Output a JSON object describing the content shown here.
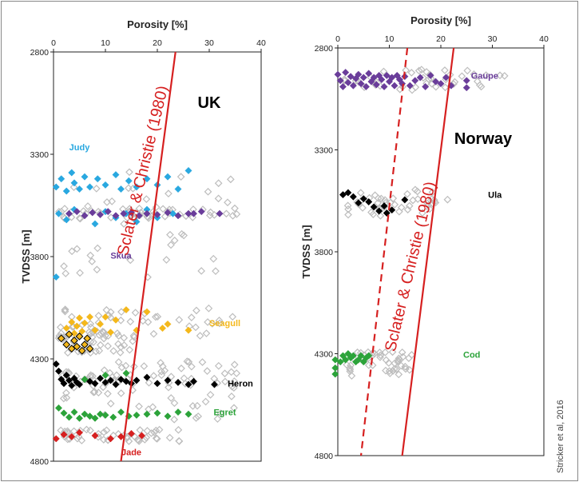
{
  "credit": "Stricker et al, 2016",
  "chart_data": [
    {
      "panel": "left",
      "type": "scatter",
      "region_label": "UK",
      "xlabel": "Porosity [%]",
      "ylabel": "TVDSS [m]",
      "xlim": [
        0,
        40
      ],
      "ylim": [
        2800,
        4800
      ],
      "y_inverted": true,
      "x_axis_position": "top",
      "xticks": [
        "0",
        "10",
        "20",
        "30",
        "40"
      ],
      "yticks": [
        "2800",
        "3300",
        "3800",
        "4300",
        "4800"
      ],
      "trend_lines": [
        {
          "name": "Sclater & Christie (1980)",
          "style": "solid",
          "color": "#d62020",
          "points": [
            [
              23.5,
              2800
            ],
            [
              13,
              4800
            ]
          ]
        }
      ],
      "series": [
        {
          "name": "Judy",
          "color": "#29a8e0",
          "label_at": [
            5,
            3280
          ],
          "values": [
            [
              0.5,
              3460
            ],
            [
              1.5,
              3420
            ],
            [
              2.5,
              3480
            ],
            [
              3.5,
              3390
            ],
            [
              4,
              3440
            ],
            [
              5,
              3470
            ],
            [
              6,
              3410
            ],
            [
              7,
              3460
            ],
            [
              8.5,
              3420
            ],
            [
              10,
              3450
            ],
            [
              12,
              3400
            ],
            [
              13,
              3470
            ],
            [
              14.5,
              3430
            ],
            [
              16,
              3460
            ],
            [
              18,
              3420
            ],
            [
              20,
              3450
            ],
            [
              22,
              3410
            ],
            [
              24,
              3470
            ],
            [
              26,
              3380
            ],
            [
              1,
              3590
            ],
            [
              2.5,
              3620
            ],
            [
              4,
              3570
            ],
            [
              6,
              3600
            ],
            [
              8,
              3640
            ],
            [
              10,
              3580
            ],
            [
              12,
              3610
            ],
            [
              14,
              3590
            ],
            [
              16,
              3630
            ],
            [
              18,
              3570
            ],
            [
              20,
              3610
            ],
            [
              23,
              3590
            ],
            [
              0.5,
              3900
            ]
          ]
        },
        {
          "name": "Skua",
          "color": "#6a3d9a",
          "label_at": [
            13,
            3810
          ],
          "values": [
            [
              3,
              3590
            ],
            [
              4.5,
              3580
            ],
            [
              6,
              3600
            ],
            [
              7.5,
              3585
            ],
            [
              9,
              3595
            ],
            [
              10.5,
              3580
            ],
            [
              12,
              3600
            ],
            [
              13.5,
              3590
            ],
            [
              15,
              3585
            ],
            [
              16.5,
              3600
            ],
            [
              18,
              3590
            ],
            [
              20,
              3595
            ],
            [
              22,
              3585
            ],
            [
              24,
              3600
            ],
            [
              26,
              3590
            ],
            [
              27,
              3590
            ],
            [
              28.5,
              3580
            ],
            [
              32,
              3590
            ]
          ]
        },
        {
          "name": "Seagull",
          "color": "#f4b81c",
          "label_at": [
            33,
            4140
          ],
          "values": [
            [
              2.5,
              4150
            ],
            [
              3.5,
              4120
            ],
            [
              4,
              4175
            ],
            [
              4.5,
              4140
            ],
            [
              5,
              4100
            ],
            [
              5.5,
              4165
            ],
            [
              6,
              4125
            ],
            [
              7,
              4095
            ],
            [
              8,
              4160
            ],
            [
              9,
              4130
            ],
            [
              10,
              4095
            ],
            [
              11,
              4170
            ],
            [
              12,
              4110
            ],
            [
              14,
              4060
            ],
            [
              16,
              4160
            ],
            [
              18,
              4070
            ],
            [
              21,
              4150
            ],
            [
              22,
              4130
            ],
            [
              26,
              4160
            ]
          ]
        },
        {
          "name": "Seagull (outlined)",
          "color": "#f4b81c",
          "stroke": "#000",
          "values": [
            [
              1.5,
              4200
            ],
            [
              2.5,
              4230
            ],
            [
              3,
              4180
            ],
            [
              3.5,
              4250
            ],
            [
              4,
              4210
            ],
            [
              4.5,
              4240
            ],
            [
              5,
              4190
            ],
            [
              5.5,
              4260
            ],
            [
              6,
              4230
            ],
            [
              6.5,
              4200
            ],
            [
              7,
              4250
            ]
          ]
        },
        {
          "name": "Heron",
          "color": "#000000",
          "label_at": [
            36,
            4435
          ],
          "values": [
            [
              0.5,
              4325
            ],
            [
              1,
              4360
            ],
            [
              1.5,
              4400
            ],
            [
              2,
              4420
            ],
            [
              2.5,
              4380
            ],
            [
              3,
              4405
            ],
            [
              3.5,
              4430
            ],
            [
              4,
              4395
            ],
            [
              4.5,
              4415
            ],
            [
              5,
              4425
            ],
            [
              6,
              4400
            ],
            [
              7,
              4410
            ],
            [
              8,
              4420
            ],
            [
              9,
              4395
            ],
            [
              10,
              4415
            ],
            [
              11,
              4405
            ],
            [
              12,
              4425
            ],
            [
              13,
              4400
            ],
            [
              14,
              4410
            ],
            [
              15,
              4420
            ],
            [
              16,
              4405
            ],
            [
              18,
              4390
            ],
            [
              20,
              4420
            ],
            [
              22,
              4405
            ],
            [
              24,
              4415
            ],
            [
              26,
              4425
            ],
            [
              27,
              4410
            ],
            [
              31,
              4425
            ]
          ]
        },
        {
          "name": "Egret",
          "color": "#2ca33a",
          "label_at": [
            33,
            4575
          ],
          "values": [
            [
              1,
              4540
            ],
            [
              2,
              4565
            ],
            [
              3,
              4585
            ],
            [
              4,
              4560
            ],
            [
              5,
              4590
            ],
            [
              6,
              4570
            ],
            [
              7,
              4580
            ],
            [
              8,
              4590
            ],
            [
              9,
              4570
            ],
            [
              10,
              4575
            ],
            [
              11.5,
              4585
            ],
            [
              13,
              4560
            ],
            [
              14.5,
              4580
            ],
            [
              16,
              4575
            ],
            [
              18,
              4570
            ],
            [
              20,
              4565
            ],
            [
              22,
              4580
            ],
            [
              24,
              4560
            ],
            [
              26,
              4570
            ],
            [
              6,
              4400
            ],
            [
              10,
              4380
            ],
            [
              14,
              4370
            ]
          ]
        },
        {
          "name": "Jade",
          "color": "#d62020",
          "label_at": [
            15,
            4770
          ],
          "values": [
            [
              0.5,
              4690
            ],
            [
              2,
              4670
            ],
            [
              3.5,
              4680
            ],
            [
              5,
              4660
            ],
            [
              8,
              4675
            ],
            [
              11,
              4690
            ],
            [
              13,
              4680
            ],
            [
              15,
              4665
            ],
            [
              17,
              4675
            ]
          ]
        }
      ]
    },
    {
      "panel": "right",
      "type": "scatter",
      "region_label": "Norway",
      "xlabel": "Porosity [%]",
      "ylabel": "TVDSS [m]",
      "xlim": [
        0,
        40
      ],
      "ylim": [
        2800,
        4800
      ],
      "y_inverted": true,
      "x_axis_position": "top",
      "xticks": [
        "0",
        "10",
        "20",
        "30",
        "40"
      ],
      "yticks": [
        "2800",
        "3300",
        "3800",
        "4300",
        "4800"
      ],
      "trend_lines": [
        {
          "name": "Sclater & Christie (1980)",
          "style": "solid",
          "color": "#d62020",
          "points": [
            [
              22.5,
              2800
            ],
            [
              12.5,
              4800
            ]
          ]
        },
        {
          "name": "",
          "style": "dashed",
          "color": "#d62020",
          "points": [
            [
              13.5,
              2800
            ],
            [
              4.5,
              4800
            ]
          ]
        }
      ],
      "series": [
        {
          "name": "Gaupe",
          "color": "#6a3d9a",
          "label_at": [
            28.5,
            2950
          ],
          "values": [
            [
              0,
              2930
            ],
            [
              0.5,
              2960
            ],
            [
              1,
              2990
            ],
            [
              1.5,
              2920
            ],
            [
              2,
              2970
            ],
            [
              2.5,
              2940
            ],
            [
              3,
              2985
            ],
            [
              3.5,
              2950
            ],
            [
              4,
              2930
            ],
            [
              4.5,
              2975
            ],
            [
              5,
              2945
            ],
            [
              5.5,
              2990
            ],
            [
              6,
              2925
            ],
            [
              6.5,
              2965
            ],
            [
              7,
              2945
            ],
            [
              7.5,
              2980
            ],
            [
              8,
              2935
            ],
            [
              8.5,
              2955
            ],
            [
              9,
              2990
            ],
            [
              9.5,
              2935
            ],
            [
              10,
              2965
            ],
            [
              10.5,
              2945
            ],
            [
              11,
              2985
            ],
            [
              11.5,
              2935
            ],
            [
              12,
              2955
            ],
            [
              12.5,
              2975
            ],
            [
              13,
              2940
            ],
            [
              14,
              2985
            ],
            [
              15,
              2960
            ],
            [
              16,
              2945
            ],
            [
              17,
              2990
            ],
            [
              18,
              2935
            ],
            [
              19,
              2965
            ],
            [
              20,
              2975
            ],
            [
              21,
              2945
            ],
            [
              22,
              2985
            ],
            [
              25,
              2960
            ],
            [
              25,
              2995
            ]
          ]
        },
        {
          "name": "Ula",
          "color": "#000000",
          "label_at": [
            30.5,
            3535
          ],
          "values": [
            [
              1,
              3520
            ],
            [
              2,
              3510
            ],
            [
              3,
              3530
            ],
            [
              4,
              3560
            ],
            [
              5,
              3540
            ],
            [
              6,
              3555
            ],
            [
              7,
              3580
            ],
            [
              8,
              3600
            ],
            [
              9,
              3575
            ],
            [
              9.5,
              3610
            ],
            [
              10.5,
              3595
            ],
            [
              13,
              3545
            ]
          ]
        },
        {
          "name": "Cod",
          "color": "#2ca33a",
          "label_at": [
            26,
            4320
          ],
          "values": [
            [
              -0.5,
              4330
            ],
            [
              0.5,
              4340
            ],
            [
              1,
              4310
            ],
            [
              1.5,
              4330
            ],
            [
              2,
              4300
            ],
            [
              2.5,
              4320
            ],
            [
              3,
              4310
            ],
            [
              3.5,
              4340
            ],
            [
              4,
              4330
            ],
            [
              4.5,
              4310
            ],
            [
              5,
              4340
            ],
            [
              5.5,
              4320
            ],
            [
              6,
              4310
            ],
            [
              -0.5,
              4370
            ],
            [
              -0.5,
              4400
            ]
          ]
        }
      ]
    }
  ]
}
